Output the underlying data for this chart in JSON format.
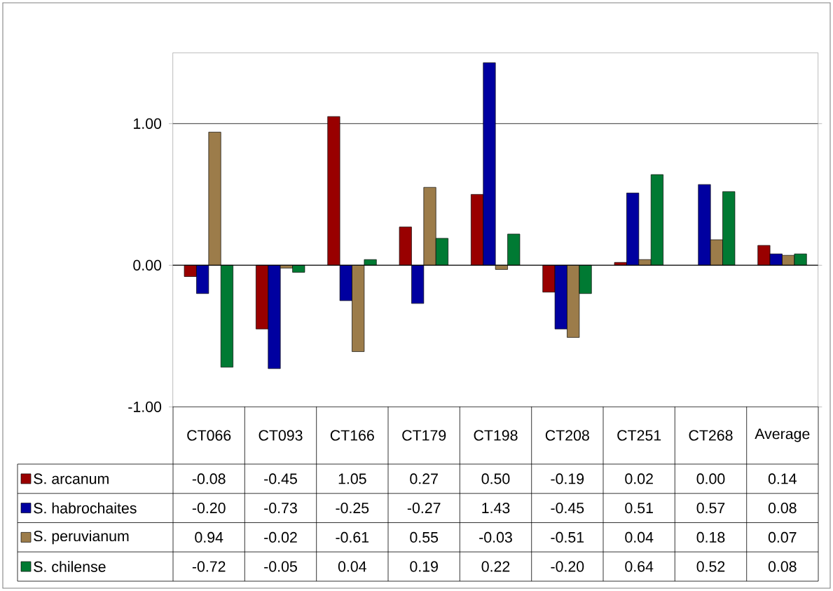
{
  "chart_data": {
    "type": "bar",
    "categories": [
      "CT066",
      "CT093",
      "CT166",
      "CT179",
      "CT198",
      "CT208",
      "CT251",
      "CT268",
      "Average"
    ],
    "series": [
      {
        "name": "S. arcanum",
        "color": "#990000",
        "values": [
          -0.08,
          -0.45,
          1.05,
          0.27,
          0.5,
          -0.19,
          0.02,
          0.0,
          0.14
        ],
        "value_labels": [
          "-0.08",
          "-0.45",
          "1.05",
          "0.27",
          "0.50",
          "-0.19",
          "0.02",
          "0.00",
          "0.14"
        ]
      },
      {
        "name": "S. habrochaites",
        "color": "#0000a0",
        "values": [
          -0.2,
          -0.73,
          -0.25,
          -0.27,
          1.43,
          -0.45,
          0.51,
          0.57,
          0.08
        ],
        "value_labels": [
          "-0.20",
          "-0.73",
          "-0.25",
          "-0.27",
          "1.43",
          "-0.45",
          "0.51",
          "0.57",
          "0.08"
        ]
      },
      {
        "name": "S. peruvianum",
        "color": "#9c7c4a",
        "values": [
          0.94,
          -0.02,
          -0.61,
          0.55,
          -0.03,
          -0.51,
          0.04,
          0.18,
          0.07
        ],
        "value_labels": [
          "0.94",
          "-0.02",
          "-0.61",
          "0.55",
          "-0.03",
          "-0.51",
          "0.04",
          "0.18",
          "0.07"
        ]
      },
      {
        "name": "S. chilense",
        "color": "#007a33",
        "values": [
          -0.72,
          -0.05,
          0.04,
          0.19,
          0.22,
          -0.2,
          0.64,
          0.52,
          0.08
        ],
        "value_labels": [
          "-0.72",
          "-0.05",
          "0.04",
          "0.19",
          "0.22",
          "-0.20",
          "0.64",
          "0.52",
          "0.08"
        ]
      }
    ],
    "ylim": [
      -1,
      1.5
    ],
    "yticks": [
      {
        "value": -1,
        "label": "-1.00"
      },
      {
        "value": 0,
        "label": "0.00"
      },
      {
        "value": 1,
        "label": "1.00"
      }
    ],
    "grid": "y",
    "legend": "bottom"
  }
}
